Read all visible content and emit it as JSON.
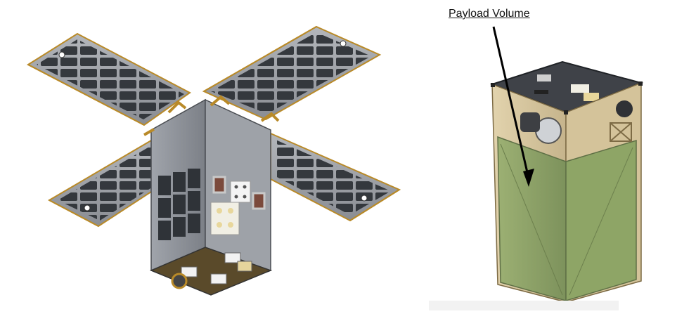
{
  "annotation": {
    "label": "Payload Volume"
  },
  "colors": {
    "panel_gray": "#8f9399",
    "panel_dark": "#5b5f66",
    "solar_cell": "#2f3338",
    "gold_hinge": "#b98a28",
    "payload_green": "#8fa46a",
    "payload_tan": "#d7c7a0",
    "top_plate": "#3f4248"
  }
}
